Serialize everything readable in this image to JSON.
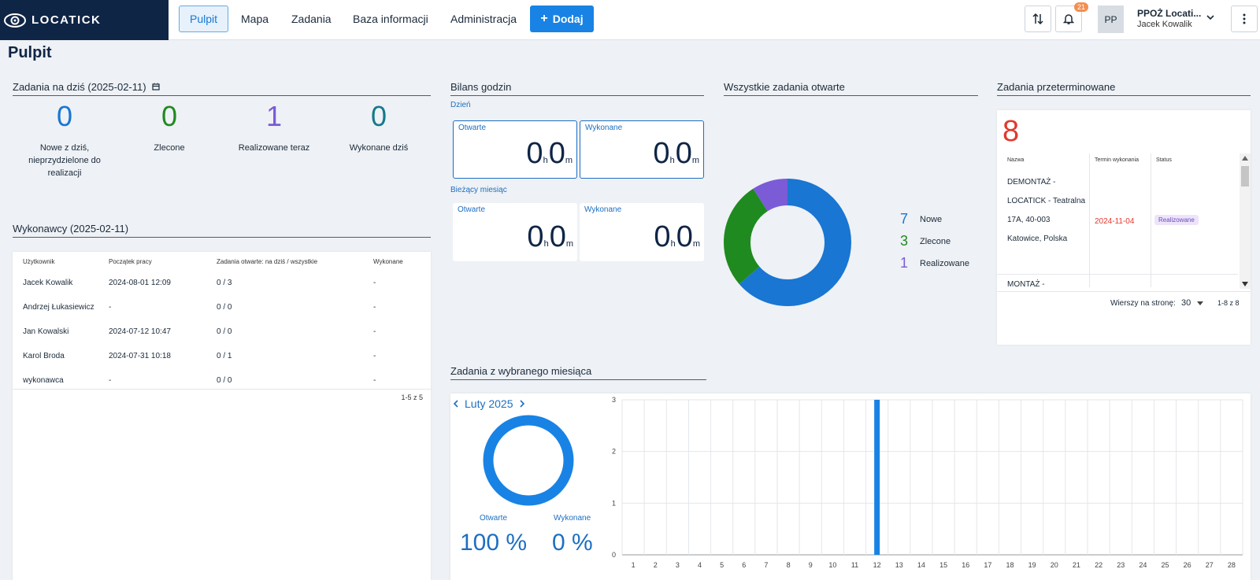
{
  "app": {
    "brand": "LOCATICK"
  },
  "nav": {
    "items": [
      "Pulpit",
      "Mapa",
      "Zadania",
      "Baza informacji",
      "Administracja"
    ],
    "add_label": "Dodaj",
    "notifications_count": "21"
  },
  "user": {
    "initials": "PP",
    "org": "PPOŻ Locati...",
    "name": "Jacek Kowalik"
  },
  "page_title": "Pulpit",
  "today": {
    "title": "Zadania na dziś (2025-02-11)",
    "stats": [
      {
        "value": "0",
        "label": "Nowe z dziś, nieprzydzielone do realizacji",
        "color": "#1976d2"
      },
      {
        "value": "0",
        "label": "Zlecone",
        "color": "#1f8a1f"
      },
      {
        "value": "1",
        "label": "Realizowane teraz",
        "color": "#7b5bd6"
      },
      {
        "value": "0",
        "label": "Wykonane dziś",
        "color": "#147a8a"
      }
    ]
  },
  "workers": {
    "title": "Wykonawcy (2025-02-11)",
    "columns": [
      "Użytkownik",
      "Początek pracy",
      "Zadania otwarte: na dziś / wszystkie",
      "Wykonane"
    ],
    "rows": [
      [
        "Jacek Kowalik",
        "2024-08-01 12:09",
        "0 / 3",
        "-"
      ],
      [
        "Andrzej Łukasiewicz",
        "-",
        "0 / 0",
        "-"
      ],
      [
        "Jan Kowalski",
        "2024-07-12 10:47",
        "0 / 0",
        "-"
      ],
      [
        "Karol Broda",
        "2024-07-31 10:18",
        "0 / 1",
        "-"
      ],
      [
        "wykonawca",
        "-",
        "0 / 0",
        "-"
      ]
    ],
    "pagination": "1-5 z 5"
  },
  "hours": {
    "title": "Bilans godzin",
    "day_label": "Dzień",
    "month_label": "Bieżący miesiąc",
    "open_label": "Otwarte",
    "done_label": "Wykonane",
    "h_unit": "h",
    "m_unit": "m",
    "day": {
      "open_h": "0",
      "open_m": "0",
      "done_h": "0",
      "done_m": "0"
    },
    "month": {
      "open_h": "0",
      "open_m": "0",
      "done_h": "0",
      "done_m": "0"
    }
  },
  "open_tasks": {
    "title": "Wszystkie zadania otwarte",
    "legend": [
      {
        "value": "7",
        "label": "Nowe",
        "color": "#1976d2"
      },
      {
        "value": "3",
        "label": "Zlecone",
        "color": "#1f8a1f"
      },
      {
        "value": "1",
        "label": "Realizowane",
        "color": "#7b5bd6"
      }
    ]
  },
  "overdue": {
    "title": "Zadania przeterminowane",
    "count": "8",
    "columns": [
      "Nazwa",
      "Termin wykonania",
      "Status"
    ],
    "row1": {
      "name": "DEMONTAŻ - LOCATICK - Teatralna 17A, 40-003 Katowice, Polska",
      "date": "2024-11-04",
      "status": "Realizowane"
    },
    "row2_name": "MONTAŻ -",
    "rows_per_page_label": "Wierszy na stronę:",
    "rows_per_page": "30",
    "pagination": "1-8 z 8"
  },
  "month_tasks": {
    "title": "Zadania z wybranego miesiąca",
    "month": "Luty 2025",
    "open_label": "Otwarte",
    "done_label": "Wykonane",
    "open_pct": "100 %",
    "done_pct": "0 %"
  },
  "chart_data": {
    "type": "bar",
    "x": [
      1,
      2,
      3,
      4,
      5,
      6,
      7,
      8,
      9,
      10,
      11,
      12,
      13,
      14,
      15,
      16,
      17,
      18,
      19,
      20,
      21,
      22,
      23,
      24,
      25,
      26,
      27,
      28
    ],
    "values": [
      0,
      0,
      0,
      0,
      0,
      0,
      0,
      0,
      0,
      0,
      0,
      3,
      0,
      0,
      0,
      0,
      0,
      0,
      0,
      0,
      0,
      0,
      0,
      0,
      0,
      0,
      0,
      0
    ],
    "yticks": [
      0,
      1,
      2,
      3
    ],
    "ylim": [
      0,
      3
    ],
    "color": "#1883e4",
    "grid": true
  }
}
